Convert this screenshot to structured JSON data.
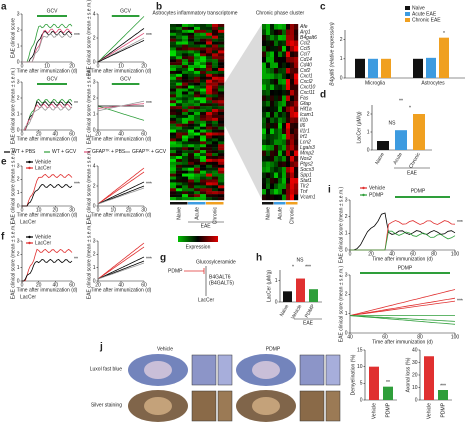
{
  "a": {
    "letter": "a",
    "plots": [
      {
        "label": "GCV",
        "ylabel": "EAE clinical score",
        "xlabel": "Time after immunization (d)",
        "xticks": [
          0,
          10,
          20
        ],
        "yticks": [
          0,
          1,
          2,
          3
        ],
        "sig": "***"
      },
      {
        "label": "GCV",
        "ylabel": "EAE clinical score (mean ± s.e.m.)",
        "xlabel": "Time after immunization (d)",
        "xticks": [
          0,
          10,
          20
        ],
        "yticks": [
          0,
          2,
          4
        ],
        "sig": "***"
      },
      {
        "label": "GCV",
        "ylabel": "EAE clinical score (mean ± s.e.m.)",
        "xlabel": "Time after immunization (d)",
        "xticks": [
          0,
          20,
          40,
          60
        ],
        "yticks": [
          0,
          1,
          2,
          3
        ],
        "sig": "**"
      },
      {
        "label": "GCV",
        "ylabel": "EAE clinical score (mean ± s.e.m.)",
        "xlabel": "Time after immunization (d)",
        "xticks": [
          20,
          40,
          60
        ],
        "yticks": [
          0,
          1,
          2,
          3
        ],
        "sig": "***"
      }
    ],
    "legend": [
      {
        "base": "WT + PBS",
        "sup": "",
        "rest": "",
        "color": "#000000"
      },
      {
        "base": "WT + GCV",
        "sup": "",
        "rest": "",
        "color": "#2e9e3a"
      },
      {
        "base": "GFAP",
        "sup": "TK",
        "rest": " + PBS",
        "color": "#e0507a"
      },
      {
        "base": "GFAP",
        "sup": "TK",
        "rest": " + GCV",
        "color": "#999999"
      }
    ]
  },
  "b": {
    "letter": "b",
    "title_left": "Astrocytes inflammatory transcriptome",
    "title_right": "Chronic phase cluster",
    "columns": [
      "Naive",
      "Acute",
      "Chronic"
    ],
    "group": "EAE",
    "scale_label": "Expression",
    "genes": [
      "Afe",
      "Arg1",
      "B4galt6",
      "Ccl2",
      "Ccl5",
      "Ccl7",
      "Cd14",
      "Cd40",
      "Csf2",
      "Cxcl1",
      "Cxcl2",
      "Cxcl10",
      "Cxcl11",
      "Fas",
      "Gfap",
      "Hif1a",
      "Icam1",
      "Il1b",
      "Il6",
      "Il1r1",
      "Irf1",
      "Lcn2",
      "Lgals3",
      "Mmp2",
      "Nos2",
      "Ptgs2",
      "Socs3",
      "Spp1",
      "Stat1",
      "Tlr2",
      "Tnf",
      "Vcam1"
    ],
    "highlight": "B4galt6"
  },
  "c": {
    "letter": "c",
    "ylabel": "B4galt6 (relative expression)",
    "groups": [
      "Microglia",
      "Astrocytes"
    ],
    "series": [
      {
        "name": "Naive",
        "color": "#111111",
        "values": [
          1.0,
          1.0
        ]
      },
      {
        "name": "Acute EAE",
        "color": "#3d9be0",
        "values": [
          1.0,
          1.05
        ]
      },
      {
        "name": "Chronic EAE",
        "color": "#f0a020",
        "values": [
          1.0,
          2.1
        ]
      }
    ],
    "ylim": [
      0,
      2.5
    ],
    "yticks": [
      0,
      1,
      2
    ],
    "sig": "*"
  },
  "d": {
    "letter": "d",
    "ylabel": "LacCer (μM/g)",
    "categories": [
      "Naive",
      "Acute",
      "Chronic"
    ],
    "colors": [
      "#111111",
      "#3d9be0",
      "#f0a020"
    ],
    "values": [
      0.5,
      1.1,
      2.0
    ],
    "ylim": [
      0,
      2.5
    ],
    "yticks": [
      0,
      1,
      2
    ],
    "group": "EAE",
    "sigs": [
      "NS",
      "**",
      "*"
    ]
  },
  "e": {
    "letter": "e",
    "legend": [
      {
        "name": "Vehicle",
        "color": "#000000"
      },
      {
        "name": "LacCer",
        "color": "#e03030"
      }
    ],
    "treatment": "LacCer",
    "plots": [
      {
        "ylabel": "EAE clinical score (mean ± s.e.m.)",
        "xlabel": "Time after immunization (d)",
        "xticks": [
          0,
          10,
          20,
          30
        ],
        "yticks": [
          0,
          1,
          2,
          3
        ],
        "sig": "***"
      },
      {
        "ylabel": "EAE clinical score (mean ± s.e.m.)",
        "xlabel": "Time after immunization (d)",
        "xticks": [
          0,
          10,
          20,
          30
        ],
        "yticks": [
          0,
          2,
          4
        ],
        "sig": "***"
      }
    ]
  },
  "f": {
    "letter": "f",
    "legend": [
      {
        "name": "Vehicle",
        "color": "#000000"
      },
      {
        "name": "LacCer",
        "color": "#e03030"
      }
    ],
    "treatment": "LacCer",
    "plots": [
      {
        "ylabel": "EAE clinical score (mean ± s.e.m.)",
        "xlabel": "Time after immunization (d)",
        "xticks": [
          0,
          20,
          40,
          60
        ],
        "yticks": [
          0,
          1,
          2,
          3
        ],
        "sig": "**"
      },
      {
        "ylabel": "EAE clinical score (mean ± s.e.m.)",
        "xlabel": "Time after immunization (d)",
        "xticks": [
          20,
          40,
          60
        ],
        "yticks": [
          0,
          1,
          2,
          3
        ],
        "sig": "***"
      }
    ]
  },
  "g": {
    "letter": "g",
    "inhibitor": "PDMP",
    "substrate": "Glucosylceramide",
    "enzyme": "B4GALT6",
    "enzyme2": "(B4GALT5)",
    "product": "LacCer"
  },
  "h": {
    "letter": "h",
    "ylabel": "LacCer (μM/g)",
    "categories": [
      "Naive",
      "Vehicle",
      "PDMP"
    ],
    "colors": [
      "#111111",
      "#e03030",
      "#2e9e3a"
    ],
    "values": [
      0.5,
      1.1,
      0.6
    ],
    "ylim": [
      0,
      1.5
    ],
    "yticks": [
      0,
      1
    ],
    "group": "EAE",
    "sigs": [
      "NS",
      "*",
      "***"
    ]
  },
  "i": {
    "letter": "i",
    "legend": [
      {
        "name": "Vehicle",
        "color": "#e03030"
      },
      {
        "name": "PDMP",
        "color": "#2e9e3a"
      }
    ],
    "label": "PDMP",
    "plots": [
      {
        "ylabel": "EAE clinical score (mean ± s.e.m.)",
        "xlabel": "Time after immunization (d)",
        "xticks": [
          0,
          20,
          40,
          60,
          80,
          100
        ],
        "yticks": [
          0,
          1,
          2,
          3
        ],
        "sig": "***"
      },
      {
        "ylabel": "EAE clinical score (mean ± s.e.m.)",
        "xlabel": "Time after immunization (d)",
        "xticks": [
          40,
          60,
          80,
          100
        ],
        "yticks": [
          0,
          1,
          2,
          3
        ],
        "sig": "***"
      }
    ]
  },
  "j": {
    "letter": "j",
    "columns": [
      "Vehicle",
      "PDMP"
    ],
    "rows": [
      "Luxol fast blue",
      "Silver staining"
    ],
    "bars": [
      {
        "ylabel": "Demyelination (%)",
        "categories": [
          "Vehicle",
          "PDMP"
        ],
        "values": [
          10,
          4
        ],
        "ylim": [
          0,
          15
        ],
        "yticks": [
          0,
          5,
          10,
          15
        ],
        "sig": "**"
      },
      {
        "ylabel": "Axonal loss (%)",
        "categories": [
          "Vehicle",
          "PDMP"
        ],
        "values": [
          35,
          8
        ],
        "ylim": [
          0,
          40
        ],
        "yticks": [
          0,
          10,
          20,
          30,
          40
        ],
        "sig": "***"
      }
    ],
    "colors": [
      "#e03030",
      "#2e9e3a"
    ]
  }
}
